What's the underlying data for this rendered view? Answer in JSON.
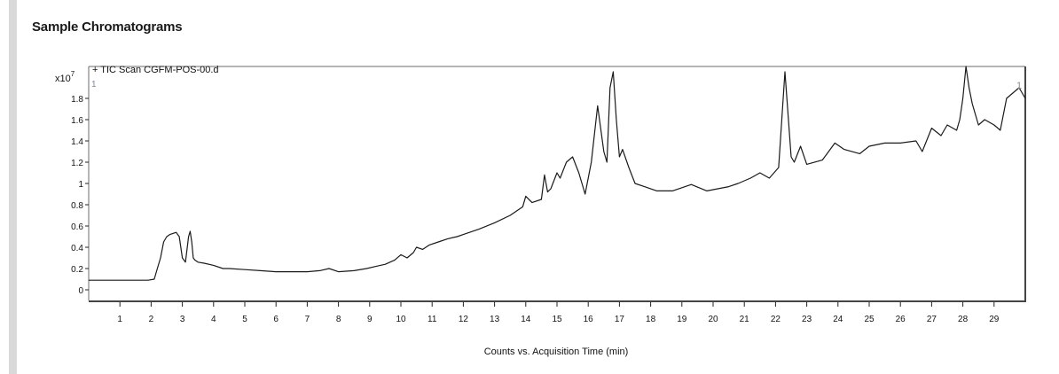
{
  "section": {
    "title": "Sample Chromatograms"
  },
  "chart_data": {
    "type": "line",
    "title": "+ TIC Scan CGFM-POS-00.d",
    "xlabel": "Counts vs. Acquisition Time (min)",
    "ylabel": "",
    "y_multiplier": "x10",
    "y_multiplier_exp": "7",
    "corner_marker_left": "1",
    "corner_marker_right": "1",
    "xlim": [
      0,
      30
    ],
    "ylim": [
      -0.1,
      2.1
    ],
    "x_ticks": [
      1,
      2,
      3,
      4,
      5,
      6,
      7,
      8,
      9,
      10,
      11,
      12,
      13,
      14,
      15,
      16,
      17,
      18,
      19,
      20,
      21,
      22,
      23,
      24,
      25,
      26,
      27,
      28,
      29
    ],
    "x_tick_labels": [
      "1",
      "2",
      "3",
      "4",
      "5",
      "6",
      "7",
      "8",
      "9",
      "10",
      "11",
      "12",
      "13",
      "14",
      "15",
      "16",
      "17",
      "18",
      "19",
      "20",
      "21",
      "22",
      "23",
      "24",
      "25",
      "26",
      "27",
      "28",
      "29"
    ],
    "y_ticks": [
      0,
      0.2,
      0.4,
      0.6,
      0.8,
      1,
      1.2,
      1.4,
      1.6,
      1.8
    ],
    "y_tick_labels": [
      "0",
      "0.2",
      "0.4",
      "0.6",
      "0.8",
      "1",
      "1.2",
      "1.4",
      "1.6",
      "1.8"
    ],
    "grid": false,
    "line_color": "#1a1a1a",
    "series": [
      {
        "x": [
          0,
          0.5,
          1,
          1.5,
          1.9,
          2.1,
          2.2,
          2.3,
          2.4,
          2.5,
          2.6,
          2.7,
          2.8,
          2.9,
          3.0,
          3.1,
          3.2,
          3.25,
          3.3,
          3.35,
          3.4,
          3.5,
          3.7,
          4.0,
          4.3,
          4.5,
          5,
          5.5,
          6,
          6.5,
          7,
          7.4,
          7.7,
          8,
          8.5,
          8.9,
          9.2,
          9.5,
          9.8,
          10,
          10.2,
          10.4,
          10.5,
          10.7,
          10.9,
          11.2,
          11.5,
          11.8,
          12,
          12.5,
          13,
          13.5,
          13.9,
          14.0,
          14.2,
          14.5,
          14.6,
          14.7,
          14.8,
          15.0,
          15.1,
          15.3,
          15.5,
          15.7,
          15.9,
          16.1,
          16.3,
          16.5,
          16.6,
          16.7,
          16.8,
          16.9,
          17.0,
          17.1,
          17.3,
          17.5,
          17.8,
          18.2,
          18.7,
          19.0,
          19.3,
          19.8,
          20.5,
          20.8,
          21.2,
          21.5,
          21.8,
          22.1,
          22.3,
          22.5,
          22.6,
          22.8,
          23.0,
          23.5,
          23.9,
          24.2,
          24.7,
          25,
          25.5,
          26,
          26.5,
          26.7,
          27,
          27.3,
          27.5,
          27.8,
          27.9,
          28.0,
          28.1,
          28.2,
          28.3,
          28.5,
          28.7,
          29.0,
          29.2,
          29.4,
          29.6,
          29.8,
          30
        ],
        "values": [
          0.09,
          0.09,
          0.09,
          0.09,
          0.09,
          0.1,
          0.2,
          0.3,
          0.45,
          0.5,
          0.52,
          0.53,
          0.54,
          0.5,
          0.3,
          0.26,
          0.5,
          0.55,
          0.45,
          0.3,
          0.28,
          0.26,
          0.25,
          0.23,
          0.2,
          0.2,
          0.19,
          0.18,
          0.17,
          0.17,
          0.17,
          0.18,
          0.2,
          0.17,
          0.18,
          0.2,
          0.22,
          0.24,
          0.28,
          0.33,
          0.3,
          0.35,
          0.4,
          0.38,
          0.42,
          0.45,
          0.48,
          0.5,
          0.52,
          0.57,
          0.63,
          0.7,
          0.78,
          0.88,
          0.82,
          0.85,
          1.08,
          0.92,
          0.95,
          1.1,
          1.05,
          1.2,
          1.25,
          1.1,
          0.9,
          1.2,
          1.73,
          1.3,
          1.2,
          1.9,
          2.05,
          1.6,
          1.25,
          1.32,
          1.15,
          1.0,
          0.97,
          0.93,
          0.93,
          0.96,
          0.99,
          0.93,
          0.97,
          1.0,
          1.05,
          1.1,
          1.05,
          1.15,
          2.05,
          1.25,
          1.2,
          1.35,
          1.18,
          1.22,
          1.38,
          1.32,
          1.28,
          1.35,
          1.38,
          1.38,
          1.4,
          1.3,
          1.52,
          1.45,
          1.55,
          1.5,
          1.6,
          1.8,
          2.1,
          1.9,
          1.75,
          1.55,
          1.6,
          1.55,
          1.5,
          1.8,
          1.85,
          1.9,
          1.8
        ]
      }
    ]
  }
}
